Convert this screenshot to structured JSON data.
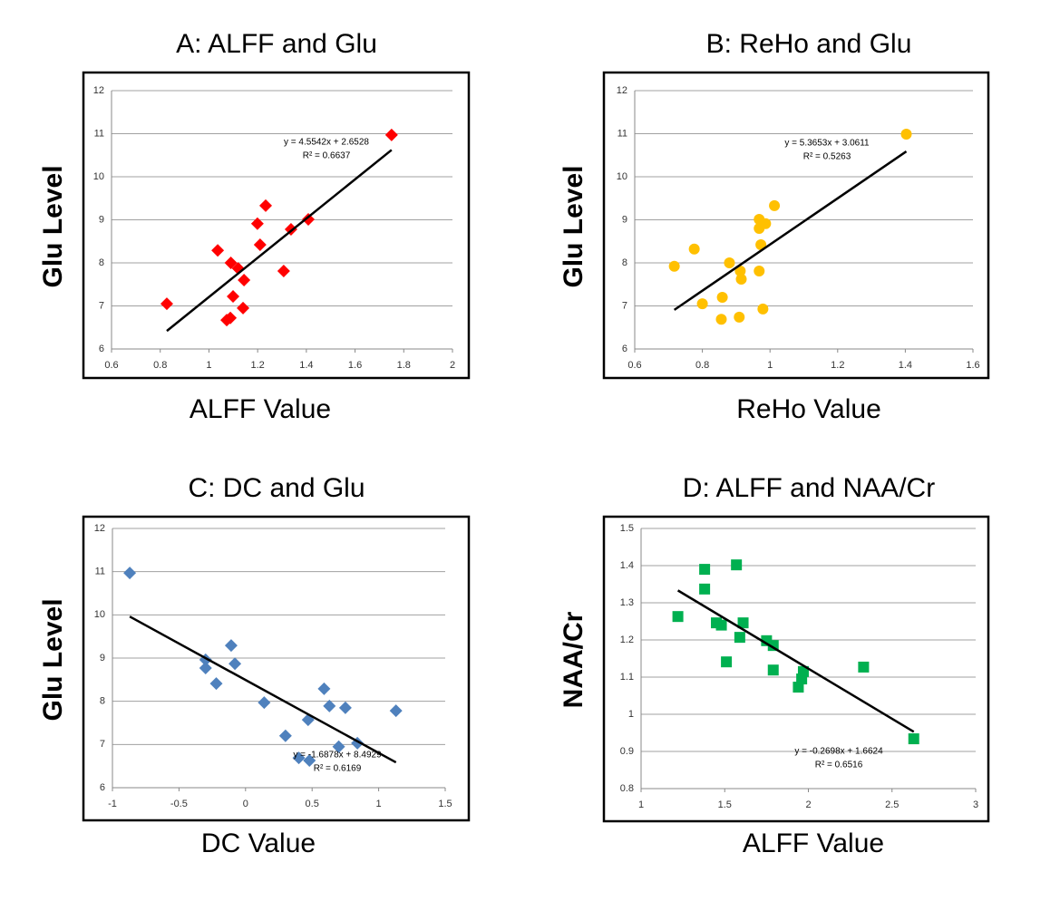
{
  "chart_data": [
    {
      "type": "scatter",
      "title": "A: ALFF and Glu",
      "xlabel": "ALFF Value",
      "ylabel": "Glu Level",
      "marker": "diamond",
      "color": "#ff0000",
      "x": [
        1.75,
        1.233,
        1.408,
        1.337,
        1.199,
        1.21,
        1.036,
        1.09,
        1.12,
        1.307,
        1.144,
        0.827,
        1.099,
        1.14,
        1.088,
        1.073
      ],
      "values": [
        10.97,
        9.33,
        9.01,
        8.78,
        8.91,
        8.42,
        8.29,
        8.0,
        7.87,
        7.81,
        7.6,
        7.05,
        7.22,
        6.95,
        6.72,
        6.67
      ],
      "xlim": [
        0.6,
        2
      ],
      "xticks": [
        0.6,
        0.8,
        1,
        1.2,
        1.4,
        1.6,
        1.8,
        2
      ],
      "ylim": [
        6,
        12
      ],
      "yticks": [
        6,
        7,
        8,
        9,
        10,
        11,
        12
      ],
      "grid": true,
      "trendline": {
        "slope": 4.5542,
        "intercept": 2.6528,
        "equation": "y = 4.5542x + 2.6528",
        "r_squared": "R² = 0.6637"
      }
    },
    {
      "type": "scatter",
      "title": "B: ReHo and Glu",
      "xlabel": "ReHo Value",
      "ylabel": "Glu Level",
      "marker": "circle",
      "color": "#ffc000",
      "x": [
        1.403,
        1.013,
        0.968,
        0.987,
        0.968,
        0.973,
        0.776,
        0.717,
        0.88,
        0.912,
        0.915,
        0.968,
        0.8,
        0.859,
        0.856,
        0.909,
        0.979
      ],
      "values": [
        10.99,
        9.33,
        9.01,
        8.91,
        8.8,
        8.42,
        8.32,
        7.92,
        8.0,
        7.81,
        7.62,
        7.81,
        7.05,
        7.2,
        6.69,
        6.74,
        6.93
      ],
      "xlim": [
        0.6,
        1.6
      ],
      "xticks": [
        0.6,
        0.8,
        1,
        1.2,
        1.4,
        1.6
      ],
      "ylim": [
        6,
        12
      ],
      "yticks": [
        6,
        7,
        8,
        9,
        10,
        11,
        12
      ],
      "grid": true,
      "trendline": {
        "slope": 5.3653,
        "intercept": 3.0611,
        "equation": "y = 5.3653x + 3.0611",
        "r_squared": "R² = 0.5263"
      }
    },
    {
      "type": "scatter",
      "title": "C: DC and Glu",
      "xlabel": "DC Value",
      "ylabel": "Glu Level",
      "marker": "diamond",
      "color": "#4f81bd",
      "x": [
        -0.87,
        -0.108,
        -0.08,
        -0.3,
        -0.3,
        -0.22,
        0.14,
        0.59,
        0.63,
        0.75,
        1.13,
        0.47,
        0.3,
        0.84,
        0.7,
        0.4,
        0.48
      ],
      "values": [
        10.97,
        9.29,
        8.87,
        8.96,
        8.77,
        8.41,
        7.97,
        8.29,
        7.89,
        7.85,
        7.78,
        7.57,
        7.2,
        7.03,
        6.95,
        6.69,
        6.63
      ],
      "xlim": [
        -1,
        1.5
      ],
      "xticks": [
        -1,
        -0.5,
        0,
        0.5,
        1,
        1.5
      ],
      "ylim": [
        6,
        12
      ],
      "yticks": [
        6,
        7,
        8,
        9,
        10,
        11,
        12
      ],
      "grid": true,
      "trendline": {
        "slope": -1.6878,
        "intercept": 8.4929,
        "equation": "y = -1.6878x + 8.4929",
        "r_squared": "R² = 0.6169"
      }
    },
    {
      "type": "scatter",
      "title": "D: ALFF and NAA/Cr",
      "xlabel": "ALFF Value",
      "ylabel": "NAA/Cr",
      "marker": "square",
      "color": "#00b050",
      "x": [
        1.22,
        1.38,
        1.38,
        1.57,
        1.45,
        1.48,
        1.61,
        1.59,
        1.75,
        1.79,
        1.51,
        1.79,
        1.97,
        1.96,
        1.94,
        2.33,
        2.63
      ],
      "values": [
        1.263,
        1.39,
        1.337,
        1.402,
        1.246,
        1.24,
        1.246,
        1.207,
        1.198,
        1.185,
        1.141,
        1.119,
        1.115,
        1.095,
        1.073,
        1.127,
        0.934
      ],
      "xlim": [
        1,
        3
      ],
      "xticks": [
        1,
        1.5,
        2,
        2.5,
        3
      ],
      "ylim": [
        0.8,
        1.5
      ],
      "yticks": [
        0.8,
        0.9,
        1,
        1.1,
        1.2,
        1.3,
        1.4,
        1.5
      ],
      "grid": true,
      "trendline": {
        "slope": -0.2698,
        "intercept": 1.6624,
        "equation": "y = -0.2698x + 1.6624",
        "r_squared": "R² = 0.6516"
      }
    }
  ]
}
